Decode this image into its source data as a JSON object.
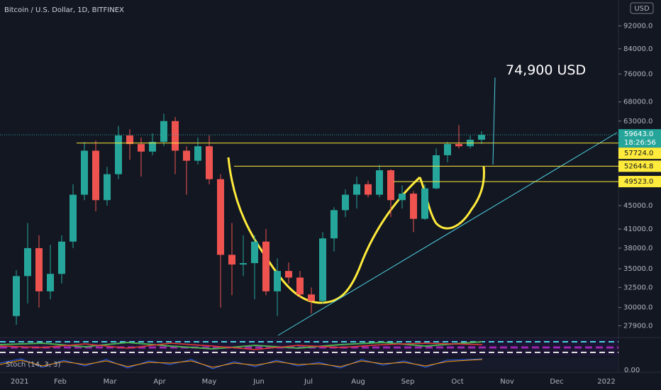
{
  "chart_data": {
    "type": "candlestick",
    "title": "Bitcoin / U.S. Dollar, 1D, BITFINEX",
    "currency": "USD",
    "log_scale": true,
    "grid": false,
    "up_color": "#26a69a",
    "down_color": "#ef5350",
    "ylim": [
      26700,
      102000
    ],
    "yticks": [
      {
        "value": 92000,
        "label": "92000.0"
      },
      {
        "value": 84000,
        "label": "84000.0"
      },
      {
        "value": 76000,
        "label": "76000.0"
      },
      {
        "value": 68000,
        "label": "68000.0"
      },
      {
        "value": 63000,
        "label": "63000.0"
      },
      {
        "value": 45000,
        "label": "45000.0"
      },
      {
        "value": 41000,
        "label": "41000.0"
      },
      {
        "value": 38000,
        "label": "38000.0"
      },
      {
        "value": 35000,
        "label": "35000.0"
      },
      {
        "value": 32500,
        "label": "32500.0"
      },
      {
        "value": 30000,
        "label": "30000.0"
      },
      {
        "value": 27900,
        "label": "27900.0"
      }
    ],
    "x_labels": [
      "2021",
      "Feb",
      "Mar",
      "Apr",
      "May",
      "Jun",
      "Jul",
      "Aug",
      "Sep",
      "Oct",
      "Nov",
      "Dec",
      "2022"
    ],
    "open": [
      29000,
      34000,
      38000,
      32000,
      34300,
      39000,
      47000,
      56000,
      46000,
      51000,
      59500,
      57500,
      55800,
      58000,
      63000,
      56000,
      53800,
      57000,
      50000,
      37000,
      35600,
      35800,
      39000,
      32000,
      34700,
      33800,
      31600,
      30800,
      39500,
      44200,
      47000,
      49000,
      47000,
      51800,
      46000,
      47200,
      42700,
      48200,
      55000,
      57500,
      57000,
      58500
    ],
    "high": [
      34800,
      42000,
      40000,
      38500,
      40000,
      49000,
      58000,
      58300,
      52500,
      61800,
      61000,
      59000,
      60000,
      64900,
      64000,
      57000,
      59000,
      59500,
      51000,
      42000,
      40000,
      40000,
      41000,
      36500,
      35900,
      34700,
      32500,
      40500,
      44700,
      48000,
      50500,
      49700,
      52900,
      52000,
      48800,
      47700,
      49000,
      56500,
      58000,
      62000,
      59500,
      60500
    ],
    "low": [
      28000,
      30500,
      30000,
      31000,
      33000,
      38000,
      46000,
      44000,
      45000,
      50000,
      54000,
      50500,
      55000,
      57000,
      51000,
      47000,
      53000,
      49000,
      30000,
      31500,
      34000,
      31000,
      31500,
      29000,
      33000,
      31200,
      29300,
      30500,
      37500,
      43000,
      44500,
      46500,
      46500,
      43000,
      44500,
      40500,
      42500,
      48000,
      53500,
      56500,
      56500,
      57500
    ],
    "close": [
      34000,
      38000,
      32000,
      34300,
      39000,
      47000,
      56000,
      46000,
      51000,
      59500,
      57500,
      55800,
      58000,
      63000,
      56000,
      53800,
      57000,
      50000,
      37000,
      35600,
      35800,
      39000,
      32000,
      34700,
      33800,
      31600,
      30800,
      39500,
      44200,
      47000,
      49000,
      47000,
      51800,
      46000,
      47200,
      42700,
      48200,
      55000,
      57500,
      57000,
      58500,
      59643
    ],
    "last": {
      "value": 59643,
      "value_label": "59643.0",
      "countdown": "18:26:56",
      "color": "#26a69a"
    },
    "levels": {
      "values": [
        57724,
        52644.8,
        49523
      ],
      "value_labels": [
        "57724.0",
        "52644.8",
        "49523.0"
      ],
      "color": "#ffeb3b"
    },
    "target": {
      "value": 74900,
      "label": "74,900 USD"
    },
    "indicator_label": "Stoch (14, 3, 3)",
    "indicator_tick": {
      "value": 0,
      "label": "0.00"
    }
  }
}
